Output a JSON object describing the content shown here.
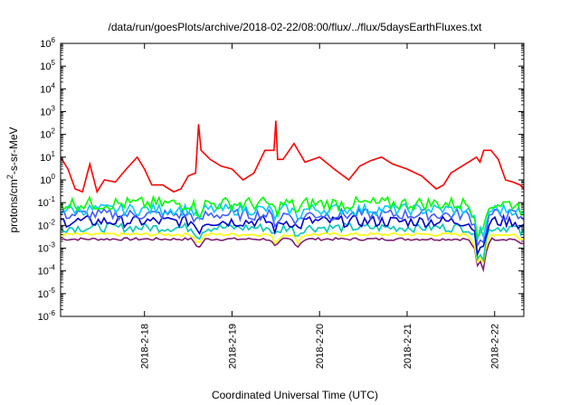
{
  "chart_data": {
    "type": "line",
    "title": "/data/run/goesPlots/archive/2018-02-22/08:00/flux/../flux/5daysEarthFluxes.txt",
    "xlabel": "Coordinated Universal Time (UTC)",
    "ylabel": {
      "prefix": "protons/cm",
      "sup": "2",
      "suffix": "-s-sr-MeV"
    },
    "y_scale": "log",
    "ylim_exp": [
      -6,
      6
    ],
    "y_ticks": [
      {
        "base": "10",
        "exp": "-6"
      },
      {
        "base": "10",
        "exp": "-5"
      },
      {
        "base": "10",
        "exp": "-4"
      },
      {
        "base": "10",
        "exp": "-3"
      },
      {
        "base": "10",
        "exp": "-2"
      },
      {
        "base": "10",
        "exp": "-1"
      },
      {
        "base": "10",
        "exp": "0"
      },
      {
        "base": "10",
        "exp": "1"
      },
      {
        "base": "10",
        "exp": "2"
      },
      {
        "base": "10",
        "exp": "3"
      },
      {
        "base": "10",
        "exp": "4"
      },
      {
        "base": "10",
        "exp": "5"
      },
      {
        "base": "10",
        "exp": "6"
      }
    ],
    "xlim": [
      "2018-02-17 01:00",
      "2018-02-22 08:00"
    ],
    "x_ticks": [
      {
        "label": "2018-2-18",
        "pos": "2018-02-18 00:00"
      },
      {
        "label": "2018-2-19",
        "pos": "2018-02-19 00:00"
      },
      {
        "label": "2018-2-20",
        "pos": "2018-02-20 00:00"
      },
      {
        "label": "2018-2-21",
        "pos": "2018-02-21 00:00"
      },
      {
        "label": "2018-2-22",
        "pos": "2018-02-22 00:00"
      }
    ],
    "grid": false,
    "series": [
      {
        "color": "#ff0000",
        "x": [
          "2018-02-17 01:00",
          "2018-02-17 03:00",
          "2018-02-17 05:00",
          "2018-02-17 07:00",
          "2018-02-17 09:00",
          "2018-02-17 11:00",
          "2018-02-17 13:00",
          "2018-02-17 16:00",
          "2018-02-17 19:00",
          "2018-02-17 22:00",
          "2018-02-18 00:00",
          "2018-02-18 02:00",
          "2018-02-18 05:00",
          "2018-02-18 08:00",
          "2018-02-18 10:00",
          "2018-02-18 12:00",
          "2018-02-18 14:00",
          "2018-02-18 14:50",
          "2018-02-18 15:30",
          "2018-02-18 18:00",
          "2018-02-18 21:00",
          "2018-02-19 00:00",
          "2018-02-19 03:00",
          "2018-02-19 06:00",
          "2018-02-19 09:00",
          "2018-02-19 11:30",
          "2018-02-19 12:00",
          "2018-02-19 12:30",
          "2018-02-19 14:00",
          "2018-02-19 17:00",
          "2018-02-19 20:00",
          "2018-02-20 00:00",
          "2018-02-20 04:00",
          "2018-02-20 08:00",
          "2018-02-20 11:00",
          "2018-02-20 14:00",
          "2018-02-20 17:00",
          "2018-02-20 20:00",
          "2018-02-21 00:00",
          "2018-02-21 04:00",
          "2018-02-21 08:00",
          "2018-02-21 10:00",
          "2018-02-21 12:00",
          "2018-02-21 16:00",
          "2018-02-21 19:00",
          "2018-02-21 20:00",
          "2018-02-21 21:00",
          "2018-02-21 23:00",
          "2018-02-22 01:00",
          "2018-02-22 03:00",
          "2018-02-22 05:00",
          "2018-02-22 07:00",
          "2018-02-22 08:00"
        ],
        "y": [
          10,
          3,
          0.4,
          0.3,
          5,
          0.3,
          1,
          0.8,
          3,
          10,
          3,
          0.6,
          0.6,
          0.3,
          0.4,
          1.5,
          2,
          280,
          20,
          8,
          4,
          3,
          1,
          2,
          20,
          20,
          400,
          8,
          8,
          40,
          6,
          10,
          3,
          1,
          4,
          7,
          10,
          5,
          3,
          1.5,
          0.4,
          0.6,
          2,
          5,
          10,
          6,
          20,
          20,
          8,
          1,
          0.8,
          0.6,
          0.4
        ]
      },
      {
        "color": "#00ff00",
        "level": 0.09,
        "jitter": 0.6
      },
      {
        "color": "#00ccff",
        "level": 0.05,
        "jitter": 0.5
      },
      {
        "color": "#4060ff",
        "level": 0.03,
        "jitter": 0.5
      },
      {
        "color": "#0000cc",
        "level": 0.015,
        "jitter": 0.5
      },
      {
        "color": "#00c8b4",
        "level": 0.008,
        "jitter": 0.4
      },
      {
        "color": "#ffff00",
        "level": 0.004,
        "jitter": 0.15
      },
      {
        "color": "#802070",
        "level": 0.0025,
        "jitter": 0.12
      }
    ]
  }
}
